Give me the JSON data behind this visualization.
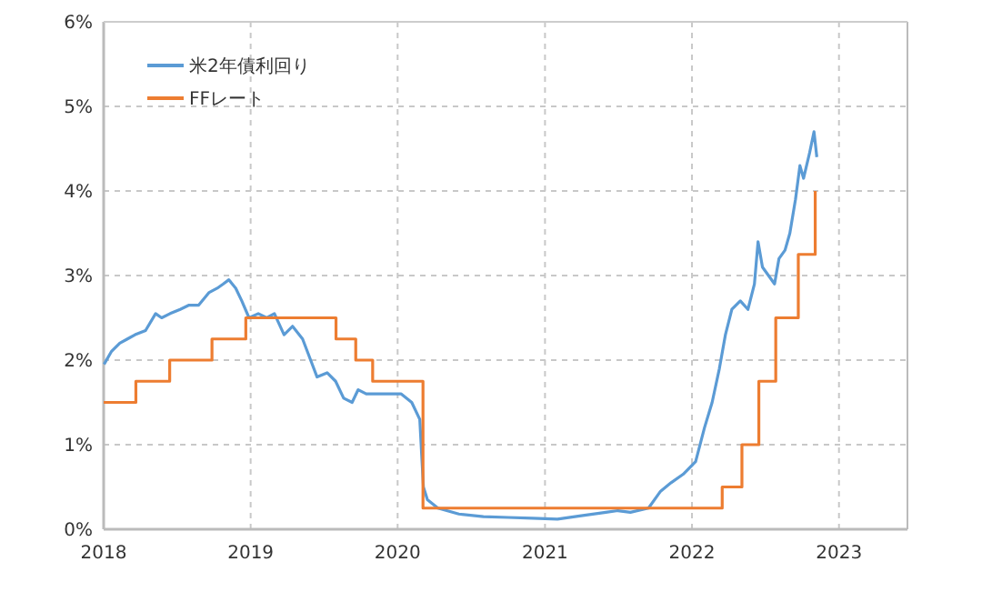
{
  "chart_data": {
    "type": "line",
    "xlim": [
      "2018-01-01",
      "2023-06-20"
    ],
    "ylim": [
      0,
      6
    ],
    "xticks": [
      {
        "value": "2018-01-01",
        "label": "2018"
      },
      {
        "value": "2019-01-01",
        "label": "2019"
      },
      {
        "value": "2020-01-01",
        "label": "2020"
      },
      {
        "value": "2021-01-01",
        "label": "2021"
      },
      {
        "value": "2022-01-01",
        "label": "2022"
      },
      {
        "value": "2023-01-01",
        "label": "2023"
      }
    ],
    "yticks": [
      {
        "value": 0,
        "label": "0%"
      },
      {
        "value": 1,
        "label": "1%"
      },
      {
        "value": 2,
        "label": "2%"
      },
      {
        "value": 3,
        "label": "3%"
      },
      {
        "value": 4,
        "label": "4%"
      },
      {
        "value": 5,
        "label": "5%"
      },
      {
        "value": 6,
        "label": "6%"
      }
    ],
    "grid": true,
    "legend": "top left",
    "line_style": "solid",
    "series": [
      {
        "name": "米2年債利回り",
        "color": "#5b9bd5",
        "x": [
          "2018-01-02",
          "2018-01-20",
          "2018-02-10",
          "2018-03-01",
          "2018-03-20",
          "2018-04-15",
          "2018-05-10",
          "2018-05-25",
          "2018-06-15",
          "2018-07-10",
          "2018-08-01",
          "2018-08-25",
          "2018-09-20",
          "2018-10-10",
          "2018-10-25",
          "2018-11-08",
          "2018-11-25",
          "2018-12-10",
          "2018-12-28",
          "2019-01-20",
          "2019-02-10",
          "2019-03-01",
          "2019-03-25",
          "2019-04-15",
          "2019-05-10",
          "2019-05-30",
          "2019-06-15",
          "2019-07-10",
          "2019-07-31",
          "2019-08-20",
          "2019-09-10",
          "2019-09-25",
          "2019-10-15",
          "2019-11-10",
          "2019-12-10",
          "2020-01-10",
          "2020-02-05",
          "2020-02-25",
          "2020-03-05",
          "2020-03-15",
          "2020-04-10",
          "2020-06-01",
          "2020-08-01",
          "2020-10-01",
          "2020-12-01",
          "2021-02-01",
          "2021-04-01",
          "2021-06-01",
          "2021-07-01",
          "2021-08-01",
          "2021-09-15",
          "2021-10-15",
          "2021-11-10",
          "2021-12-10",
          "2022-01-10",
          "2022-02-01",
          "2022-02-20",
          "2022-03-10",
          "2022-03-25",
          "2022-04-10",
          "2022-05-01",
          "2022-05-20",
          "2022-06-05",
          "2022-06-14",
          "2022-06-25",
          "2022-07-10",
          "2022-07-25",
          "2022-08-05",
          "2022-08-20",
          "2022-09-01",
          "2022-09-15",
          "2022-09-26",
          "2022-10-05",
          "2022-10-20",
          "2022-10-31",
          "2022-11-07"
        ],
        "values": [
          1.95,
          2.1,
          2.2,
          2.25,
          2.3,
          2.35,
          2.55,
          2.5,
          2.55,
          2.6,
          2.65,
          2.65,
          2.8,
          2.85,
          2.9,
          2.95,
          2.85,
          2.7,
          2.5,
          2.55,
          2.5,
          2.55,
          2.3,
          2.4,
          2.25,
          2.0,
          1.8,
          1.85,
          1.75,
          1.55,
          1.5,
          1.65,
          1.6,
          1.6,
          1.6,
          1.6,
          1.5,
          1.3,
          0.5,
          0.35,
          0.25,
          0.18,
          0.15,
          0.14,
          0.13,
          0.12,
          0.16,
          0.2,
          0.22,
          0.2,
          0.25,
          0.45,
          0.55,
          0.65,
          0.8,
          1.2,
          1.5,
          1.9,
          2.3,
          2.6,
          2.7,
          2.6,
          2.9,
          3.4,
          3.1,
          3.0,
          2.9,
          3.2,
          3.3,
          3.5,
          3.9,
          4.3,
          4.15,
          4.45,
          4.7,
          4.4
        ]
      },
      {
        "name": "FFレート",
        "color": "#ed7d31",
        "type": "step",
        "x": [
          "2018-01-01",
          "2018-03-22",
          "2018-06-14",
          "2018-09-27",
          "2018-12-20",
          "2019-08-01",
          "2019-09-19",
          "2019-10-31",
          "2020-03-04",
          "2022-03-17",
          "2022-05-05",
          "2022-06-16",
          "2022-07-28",
          "2022-09-22",
          "2022-11-03"
        ],
        "values": [
          1.5,
          1.75,
          2.0,
          2.25,
          2.5,
          2.25,
          2.0,
          1.75,
          0.25,
          0.5,
          1.0,
          1.75,
          2.5,
          3.25,
          4.0
        ]
      }
    ]
  }
}
